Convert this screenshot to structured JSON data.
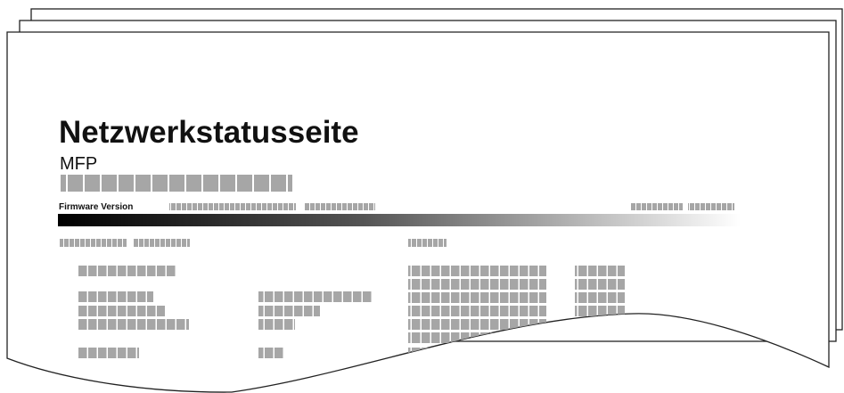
{
  "header": {
    "title": "Netzwerkstatusseite",
    "subtitle": "MFP",
    "firmware_label": "Firmware Version"
  }
}
